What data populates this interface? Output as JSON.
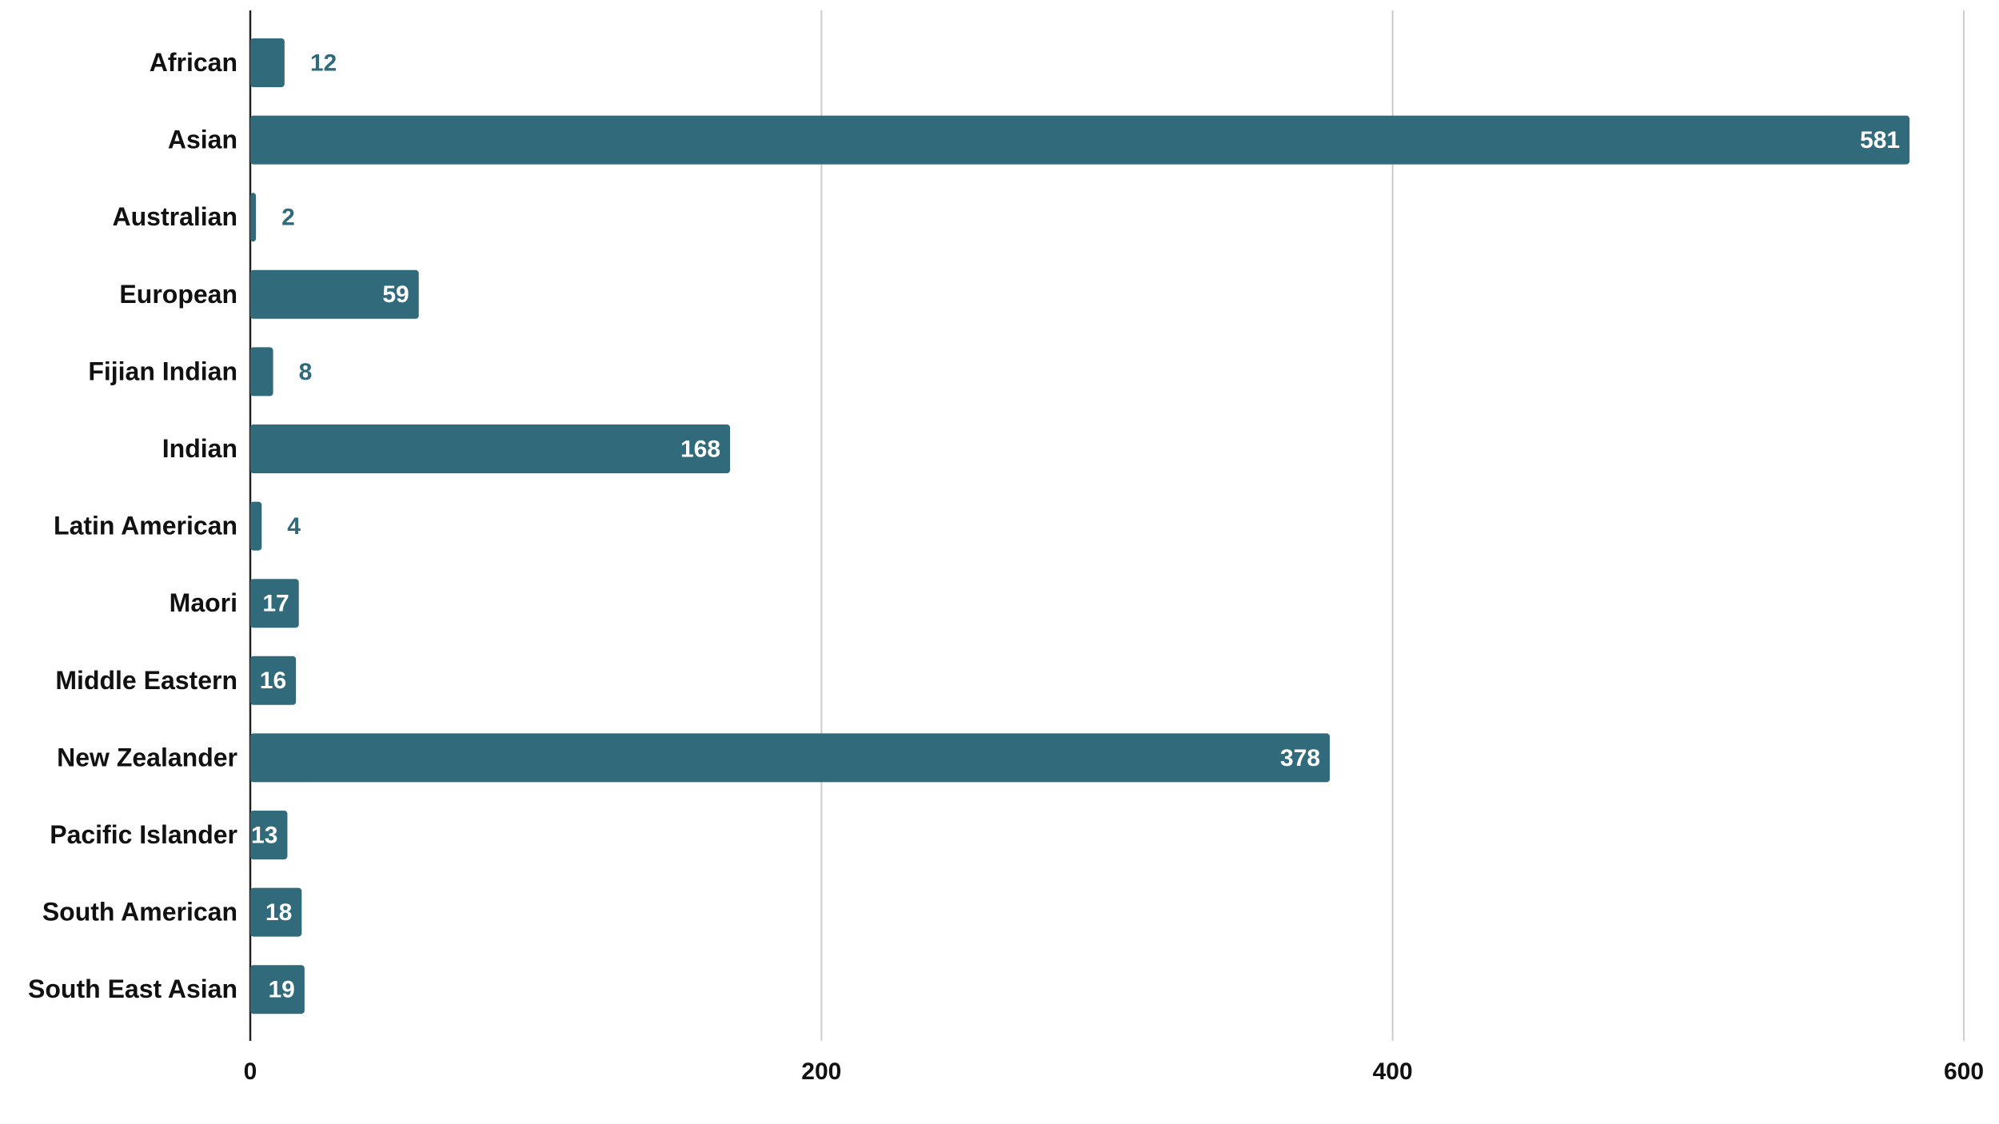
{
  "chart_data": {
    "type": "hbar",
    "categories": [
      "African",
      "Asian",
      "Australian",
      "European",
      "Fijian Indian",
      "Indian",
      "Latin American",
      "Maori",
      "Middle Eastern",
      "New Zealander",
      "Pacific Islander",
      "South American",
      "South East Asian"
    ],
    "values": [
      12,
      581,
      2,
      59,
      8,
      168,
      4,
      17,
      16,
      378,
      13,
      18,
      19
    ],
    "color": "#306a7b",
    "xlim": [
      0,
      600
    ],
    "xticks": [
      0,
      200,
      400,
      600
    ],
    "grid": true
  }
}
